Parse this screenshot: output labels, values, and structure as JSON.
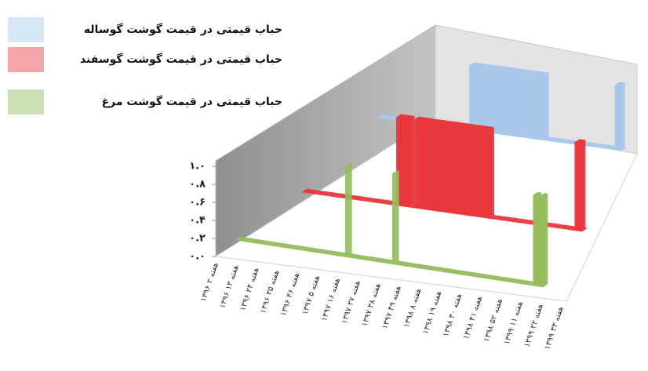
{
  "chart_data": {
    "type": "area3d",
    "categories": [
      "۱۳۹۶ هفته ۲",
      null,
      null,
      null,
      null,
      null,
      null,
      null,
      null,
      null,
      null,
      "۱۳۹۶ هفته ۱۳",
      null,
      null,
      null,
      null,
      null,
      null,
      null,
      null,
      null,
      null,
      "۱۳۹۶ هفته ۲۴",
      null,
      null,
      null,
      null,
      null,
      null,
      null,
      null,
      null,
      null,
      "۱۳۹۶ هفته ۳۵",
      null,
      null,
      null,
      null,
      null,
      null,
      null,
      null,
      null,
      null,
      "۱۳۹۶ هفته ۴۶",
      null,
      null,
      null,
      null,
      null,
      null,
      null,
      null,
      null,
      null,
      "۱۳۹۷ هفته ۵",
      null,
      null,
      null,
      null,
      null,
      null,
      null,
      null,
      null,
      null,
      "۱۳۹۷ هفته ۱۶",
      null,
      null,
      null,
      null,
      null,
      null,
      null,
      null,
      null,
      null,
      "۱۳۹۷ هفته ۲۷",
      null,
      null,
      null,
      null,
      null,
      null,
      null,
      null,
      null,
      null,
      "۱۳۹۷ هفته ۳۸",
      null,
      null,
      null,
      null,
      null,
      null,
      null,
      null,
      null,
      null,
      "۱۳۹۷ هفته ۴۹",
      null,
      null,
      null,
      null,
      null,
      null,
      null,
      null,
      null,
      null,
      "۱۳۹۸ هفته ۸",
      null,
      null,
      null,
      null,
      null,
      null,
      null,
      null,
      null,
      null,
      "۱۳۹۸ هفته ۱۹",
      null,
      null,
      null,
      null,
      null,
      null,
      null,
      null,
      null,
      null,
      "۱۳۹۸ هفته ۳۰",
      null,
      null,
      null,
      null,
      null,
      null,
      null,
      null,
      null,
      null,
      "۱۳۹۸ هفته ۴۱",
      null,
      null,
      null,
      null,
      null,
      null,
      null,
      null,
      null,
      null,
      "۱۳۹۸ هفته ۵۲",
      null,
      null,
      null,
      null,
      null,
      null,
      null,
      null,
      null,
      null,
      "۱۳۹۹ هفته ۱۱",
      null,
      null,
      null,
      null,
      null,
      null,
      null,
      null,
      null,
      null,
      "۱۳۹۹ هفته ۲۲",
      null,
      null,
      null,
      null,
      null,
      null,
      null,
      null,
      null,
      null,
      "۱۳۹۹ هفته ۳۳",
      null,
      null
    ],
    "series": [
      {
        "name": "حباب قیمتی در قیمت گوشت گوساله",
        "color": "#a9c8ea",
        "values": [
          0,
          0,
          0,
          0,
          0,
          0,
          0,
          0,
          0,
          0,
          0,
          0,
          0,
          0,
          0,
          0,
          0,
          0,
          0,
          0,
          0,
          0,
          0,
          0,
          0,
          0,
          0,
          0,
          0,
          0,
          0,
          0,
          0,
          0,
          0,
          0,
          0,
          0,
          0,
          0,
          0,
          0,
          0,
          0,
          0,
          0,
          0,
          0,
          0,
          0,
          0,
          0,
          0,
          0,
          0,
          0,
          0,
          0,
          0,
          0,
          0,
          0,
          0,
          0,
          0,
          0,
          0,
          0,
          0,
          0,
          0,
          0,
          1,
          1,
          1,
          1,
          1,
          1,
          1,
          1,
          1,
          1,
          1,
          1,
          1,
          1,
          1,
          1,
          1,
          1,
          1,
          1,
          1,
          1,
          1,
          1,
          1,
          1,
          1,
          1,
          1,
          1,
          1,
          1,
          1,
          1,
          1,
          1,
          1,
          1,
          1,
          1,
          1,
          1,
          1,
          1,
          1,
          1,
          1,
          1,
          1,
          1,
          1,
          1,
          1,
          1,
          1,
          1,
          1,
          1,
          0,
          0,
          0,
          0,
          0,
          0,
          0,
          0,
          0,
          0,
          0,
          0,
          0,
          0,
          0,
          0,
          0,
          0,
          0,
          0,
          0,
          0,
          0,
          0,
          0,
          0,
          0,
          0,
          0,
          0,
          0,
          0,
          0,
          0,
          0,
          0,
          0,
          0,
          0,
          0,
          0,
          0,
          0,
          0,
          0,
          0,
          0,
          0,
          0,
          0,
          0,
          0,
          0,
          0,
          0,
          1,
          1,
          1,
          1,
          0
        ]
      },
      {
        "name": "حباب قیمتی در قیمت گوشت گوسفند",
        "color": "#e8393f",
        "values": [
          0,
          0,
          0,
          0,
          0,
          0,
          0,
          0,
          0,
          0,
          0,
          0,
          0,
          0,
          0,
          0,
          0,
          0,
          0,
          0,
          0,
          0,
          0,
          0,
          0,
          0,
          0,
          0,
          0,
          0,
          0,
          0,
          0,
          0,
          0,
          0,
          0,
          0,
          0,
          0,
          0,
          0,
          0,
          0,
          0,
          0,
          0,
          0,
          0,
          0,
          0,
          0,
          0,
          0,
          0,
          0,
          0,
          0,
          0,
          0,
          0,
          0,
          0,
          0,
          1,
          1,
          1,
          1,
          1,
          1,
          1,
          1,
          1,
          0,
          0,
          0,
          1,
          1,
          1,
          1,
          1,
          1,
          1,
          1,
          1,
          1,
          1,
          1,
          1,
          1,
          1,
          1,
          1,
          1,
          1,
          1,
          1,
          1,
          1,
          1,
          1,
          1,
          1,
          1,
          1,
          1,
          1,
          1,
          1,
          1,
          1,
          1,
          1,
          1,
          1,
          1,
          1,
          1,
          1,
          1,
          1,
          1,
          1,
          1,
          1,
          1,
          1,
          0,
          0,
          0,
          0,
          0,
          0,
          0,
          0,
          0,
          0,
          0,
          0,
          0,
          0,
          0,
          0,
          0,
          0,
          0,
          0,
          0,
          0,
          0,
          0,
          0,
          0,
          0,
          0,
          0,
          0,
          0,
          0,
          0,
          0,
          0,
          0,
          0,
          0,
          0,
          0,
          0,
          0,
          0,
          0,
          0,
          0,
          0,
          0,
          0,
          0,
          0,
          0,
          0,
          0,
          0,
          0,
          0,
          0,
          1,
          1,
          1,
          1,
          0
        ]
      },
      {
        "name": "حباب قیمتی در قیمت گوشت مرغ",
        "color": "#93bd5e",
        "values": [
          0,
          0,
          0,
          0,
          0,
          0,
          0,
          0,
          0,
          0,
          0,
          0,
          0,
          0,
          0,
          0,
          0,
          0,
          0,
          0,
          0,
          0,
          0,
          0,
          0,
          0,
          0,
          0,
          0,
          0,
          0,
          0,
          0,
          0,
          0,
          0,
          0,
          0,
          0,
          0,
          0,
          0,
          0,
          0,
          0,
          0,
          0,
          0,
          0,
          0,
          0,
          0,
          0,
          0,
          0,
          0,
          0,
          0,
          0,
          0,
          0,
          0,
          0,
          0,
          0,
          0,
          0,
          0,
          1,
          0,
          0,
          0,
          0,
          0,
          0,
          0,
          0,
          0,
          0,
          0,
          0,
          0,
          0,
          0,
          0,
          0,
          0,
          0,
          0,
          0,
          0,
          0,
          0,
          0,
          0,
          0,
          0,
          1,
          0,
          0,
          0,
          0,
          0,
          0,
          0,
          0,
          0,
          0,
          0,
          0,
          0,
          0,
          0,
          0,
          0,
          0,
          0,
          0,
          0,
          0,
          0,
          0,
          0,
          0,
          0,
          0,
          0,
          0,
          0,
          0,
          0,
          0,
          0,
          0,
          0,
          0,
          0,
          0,
          0,
          0,
          0,
          0,
          0,
          0,
          0,
          0,
          0,
          0,
          0,
          0,
          0,
          0,
          0,
          0,
          0,
          0,
          0,
          0,
          0,
          0,
          0,
          0,
          0,
          0,
          0,
          0,
          0,
          0,
          0,
          0,
          0,
          0,
          0,
          0,
          0,
          0,
          0,
          0,
          0,
          0,
          0,
          0,
          0,
          0,
          1,
          1,
          0,
          0,
          1,
          1
        ]
      }
    ],
    "ylim": [
      0,
      1
    ],
    "yticks": [
      {
        "value": 0,
        "label": "۰.۰"
      },
      {
        "value": 0.2,
        "label": "۰.۲"
      },
      {
        "value": 0.4,
        "label": "۰.۴"
      },
      {
        "value": 0.6,
        "label": "۰.۶"
      },
      {
        "value": 0.8,
        "label": "۰.۸"
      },
      {
        "value": 1,
        "label": "۱.۰"
      }
    ],
    "legend": "top-left"
  }
}
